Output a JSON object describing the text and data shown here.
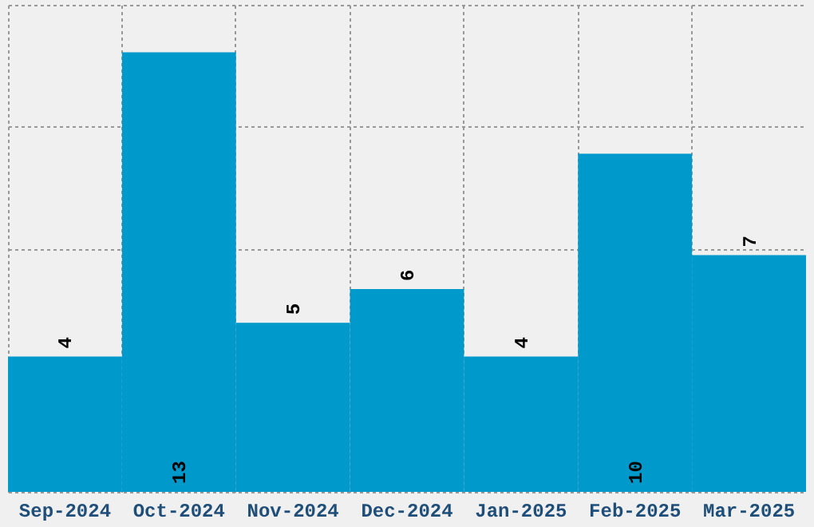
{
  "chart_data": {
    "type": "bar",
    "categories": [
      "Sep-2024",
      "Oct-2024",
      "Nov-2024",
      "Dec-2024",
      "Jan-2025",
      "Feb-2025",
      "Mar-2025"
    ],
    "values": [
      4,
      13,
      5,
      6,
      4,
      10,
      7
    ],
    "color": "#0099cc",
    "data_labels": true,
    "tick_labels": "x",
    "grid": true
  }
}
